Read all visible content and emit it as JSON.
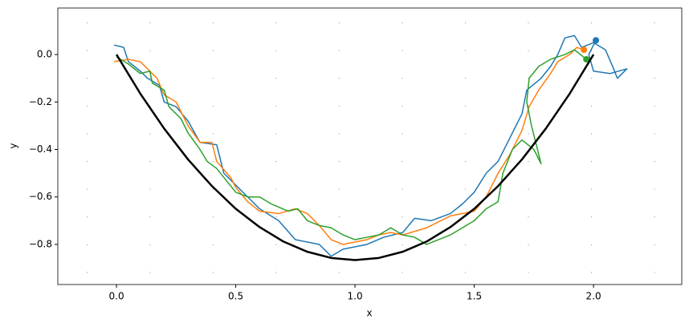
{
  "chart_data": {
    "type": "line",
    "xlabel": "x",
    "ylabel": "y",
    "xlim": [
      -0.246,
      2.37
    ],
    "ylim": [
      -0.969,
      0.196
    ],
    "xticks": [
      {
        "value": 0,
        "label": "0.0"
      },
      {
        "value": 0.5,
        "label": "0.5"
      },
      {
        "value": 1,
        "label": "1.0"
      },
      {
        "value": 1.5,
        "label": "1.5"
      },
      {
        "value": 2,
        "label": "2.0"
      }
    ],
    "yticks": [
      {
        "value": 0,
        "label": "0.0"
      },
      {
        "value": -0.2,
        "label": "−0.2"
      },
      {
        "value": -0.4,
        "label": "−0.4"
      },
      {
        "value": -0.6,
        "label": "−0.6"
      },
      {
        "value": -0.8,
        "label": "−0.8"
      }
    ],
    "series": [
      {
        "color": "#1f77b4",
        "marker_last": true,
        "x": [
          -0.01,
          0.03,
          0.05,
          0.1,
          0.13,
          0.18,
          0.2,
          0.25,
          0.3,
          0.35,
          0.42,
          0.45,
          0.5,
          0.55,
          0.6,
          0.68,
          0.75,
          0.85,
          0.9,
          0.95,
          1.05,
          1.12,
          1.2,
          1.25,
          1.32,
          1.4,
          1.45,
          1.5,
          1.55,
          1.6,
          1.65,
          1.7,
          1.72,
          1.78,
          1.82,
          1.85,
          1.88,
          1.92,
          1.95,
          2.0,
          2.05,
          2.08,
          2.1,
          2.14,
          2.07,
          2.0,
          1.98,
          2.01
        ],
        "values": [
          0.04,
          0.03,
          -0.03,
          -0.07,
          -0.1,
          -0.13,
          -0.2,
          -0.22,
          -0.28,
          -0.37,
          -0.38,
          -0.5,
          -0.55,
          -0.6,
          -0.65,
          -0.7,
          -0.78,
          -0.8,
          -0.85,
          -0.82,
          -0.8,
          -0.77,
          -0.75,
          -0.69,
          -0.7,
          -0.67,
          -0.63,
          -0.58,
          -0.5,
          -0.45,
          -0.35,
          -0.25,
          -0.15,
          -0.1,
          -0.05,
          0.0,
          0.07,
          0.08,
          0.03,
          0.05,
          0.02,
          -0.05,
          -0.1,
          -0.06,
          -0.08,
          -0.07,
          0.0,
          0.06
        ]
      },
      {
        "color": "#ff7f0e",
        "marker_last": true,
        "x": [
          -0.01,
          0.05,
          0.1,
          0.13,
          0.17,
          0.2,
          0.25,
          0.3,
          0.35,
          0.4,
          0.42,
          0.48,
          0.5,
          0.55,
          0.6,
          0.68,
          0.75,
          0.8,
          0.85,
          0.9,
          0.95,
          1.0,
          1.05,
          1.1,
          1.15,
          1.2,
          1.3,
          1.4,
          1.5,
          1.55,
          1.6,
          1.65,
          1.7,
          1.73,
          1.77,
          1.82,
          1.85,
          1.9,
          1.93,
          1.96
        ],
        "values": [
          -0.03,
          -0.02,
          -0.03,
          -0.06,
          -0.1,
          -0.17,
          -0.2,
          -0.3,
          -0.37,
          -0.37,
          -0.45,
          -0.52,
          -0.56,
          -0.62,
          -0.66,
          -0.67,
          -0.65,
          -0.67,
          -0.72,
          -0.78,
          -0.8,
          -0.79,
          -0.78,
          -0.76,
          -0.75,
          -0.76,
          -0.73,
          -0.68,
          -0.66,
          -0.6,
          -0.5,
          -0.42,
          -0.32,
          -0.22,
          -0.15,
          -0.08,
          -0.03,
          0.0,
          0.03,
          0.02
        ]
      },
      {
        "color": "#2ca02c",
        "marker_last": true,
        "x": [
          0.0,
          0.05,
          0.1,
          0.14,
          0.15,
          0.2,
          0.22,
          0.27,
          0.3,
          0.35,
          0.38,
          0.42,
          0.5,
          0.55,
          0.6,
          0.65,
          0.72,
          0.76,
          0.8,
          0.85,
          0.9,
          0.95,
          1.0,
          1.05,
          1.1,
          1.15,
          1.2,
          1.25,
          1.3,
          1.4,
          1.5,
          1.55,
          1.6,
          1.62,
          1.66,
          1.7,
          1.75,
          1.78,
          1.74,
          1.72,
          1.73,
          1.77,
          1.82,
          1.88,
          1.92,
          1.97
        ],
        "values": [
          -0.01,
          -0.04,
          -0.08,
          -0.07,
          -0.12,
          -0.15,
          -0.22,
          -0.27,
          -0.33,
          -0.4,
          -0.45,
          -0.48,
          -0.58,
          -0.6,
          -0.6,
          -0.63,
          -0.66,
          -0.65,
          -0.7,
          -0.72,
          -0.73,
          -0.76,
          -0.78,
          -0.77,
          -0.76,
          -0.73,
          -0.76,
          -0.77,
          -0.8,
          -0.76,
          -0.7,
          -0.65,
          -0.62,
          -0.5,
          -0.4,
          -0.36,
          -0.4,
          -0.46,
          -0.3,
          -0.2,
          -0.1,
          -0.05,
          -0.02,
          0.0,
          0.02,
          -0.02
        ]
      },
      {
        "color": "#000000",
        "width": 2.5,
        "x": [
          0,
          0.1,
          0.2,
          0.3,
          0.4,
          0.5,
          0.6,
          0.7,
          0.8,
          0.9,
          1.0,
          1.1,
          1.2,
          1.3,
          1.4,
          1.5,
          1.6,
          1.7,
          1.8,
          1.9,
          2.0
        ],
        "values": [
          0,
          -0.165,
          -0.312,
          -0.442,
          -0.554,
          -0.65,
          -0.727,
          -0.788,
          -0.831,
          -0.857,
          -0.866,
          -0.857,
          -0.831,
          -0.788,
          -0.727,
          -0.65,
          -0.554,
          -0.442,
          -0.312,
          -0.165,
          0
        ]
      }
    ]
  }
}
